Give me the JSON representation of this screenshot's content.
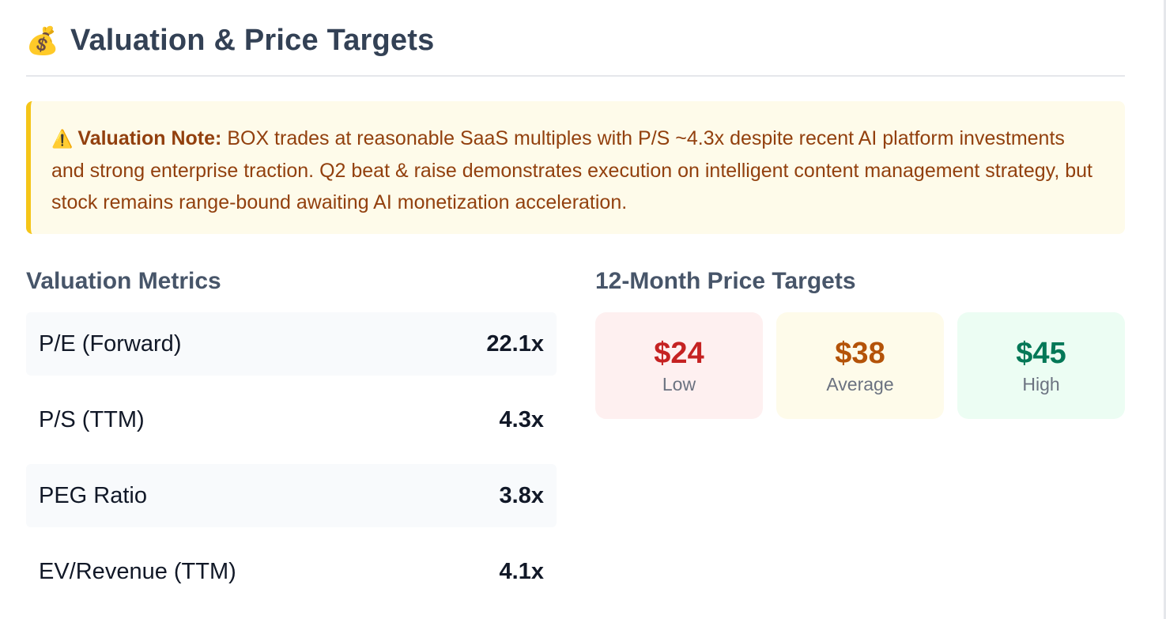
{
  "header": {
    "icon": "money-bag-icon",
    "icon_glyph": "💰",
    "title": "Valuation & Price Targets"
  },
  "note": {
    "icon": "warning-icon",
    "icon_glyph": "⚠️",
    "label": "Valuation Note:",
    "text": " BOX trades at reasonable SaaS multiples with P/S ~4.3x despite recent AI platform investments and strong enterprise traction. Q2 beat & raise demonstrates execution on intelligent content management strategy, but stock remains range-bound awaiting AI monetization acceleration."
  },
  "valuation_metrics": {
    "title": "Valuation Metrics",
    "rows": [
      {
        "label": "P/E (Forward)",
        "value": "22.1x"
      },
      {
        "label": "P/S (TTM)",
        "value": "4.3x"
      },
      {
        "label": "PEG Ratio",
        "value": "3.8x"
      },
      {
        "label": "EV/Revenue (TTM)",
        "value": "4.1x"
      }
    ]
  },
  "price_targets": {
    "title": "12-Month Price Targets",
    "cards": [
      {
        "price": "$24",
        "label": "Low",
        "color": "#c52222"
      },
      {
        "price": "$38",
        "label": "Average",
        "color": "#b45309"
      },
      {
        "price": "$45",
        "label": "High",
        "color": "#047857"
      }
    ]
  }
}
